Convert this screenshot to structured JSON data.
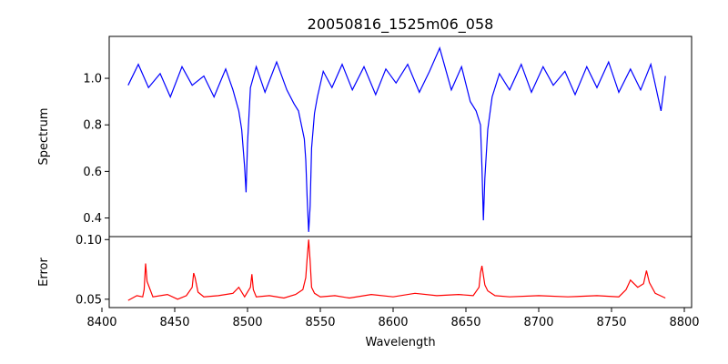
{
  "chart_data": {
    "type": "line",
    "title": "20050816_1525m06_058",
    "xlabel": "Wavelength",
    "xlim": [
      8405,
      8805
    ],
    "x_ticks": [
      "8400",
      "8450",
      "8500",
      "8550",
      "8600",
      "8650",
      "8700",
      "8750",
      "8800"
    ],
    "x_tick_values": [
      8400,
      8450,
      8500,
      8550,
      8600,
      8650,
      8700,
      8750,
      8800
    ],
    "grid": false,
    "wavelength_range": [
      8418,
      8787
    ],
    "panels": [
      {
        "name": "spectrum",
        "ylabel": "Spectrum",
        "ylim": [
          0.32,
          1.18
        ],
        "y_ticks": [
          "0.4",
          "0.6",
          "0.8",
          "1.0"
        ],
        "y_tick_values": [
          0.4,
          0.6,
          0.8,
          1.0
        ],
        "color": "#0000ff",
        "series": {
          "x": [
            8418,
            8425,
            8432,
            8440,
            8447,
            8455,
            8462,
            8470,
            8477,
            8485,
            8490,
            8494,
            8496,
            8498,
            8499,
            8500,
            8502,
            8506,
            8512,
            8520,
            8527,
            8532,
            8535,
            8537,
            8539,
            8540,
            8541,
            8542,
            8543,
            8544,
            8546,
            8548,
            8552,
            8558,
            8565,
            8572,
            8580,
            8588,
            8595,
            8602,
            8610,
            8618,
            8625,
            8632,
            8640,
            8647,
            8653,
            8657,
            8660,
            8661,
            8662,
            8663,
            8665,
            8668,
            8673,
            8680,
            8688,
            8695,
            8703,
            8710,
            8718,
            8725,
            8733,
            8740,
            8748,
            8755,
            8763,
            8770,
            8777,
            8784,
            8787
          ],
          "values": [
            0.97,
            1.06,
            0.96,
            1.02,
            0.92,
            1.05,
            0.97,
            1.01,
            0.92,
            1.04,
            0.95,
            0.86,
            0.78,
            0.62,
            0.51,
            0.72,
            0.96,
            1.05,
            0.94,
            1.07,
            0.95,
            0.89,
            0.86,
            0.8,
            0.74,
            0.65,
            0.48,
            0.34,
            0.45,
            0.7,
            0.85,
            0.92,
            1.03,
            0.96,
            1.06,
            0.95,
            1.05,
            0.93,
            1.04,
            0.98,
            1.06,
            0.94,
            1.03,
            1.13,
            0.95,
            1.05,
            0.9,
            0.86,
            0.8,
            0.62,
            0.39,
            0.57,
            0.78,
            0.92,
            1.02,
            0.95,
            1.06,
            0.94,
            1.05,
            0.97,
            1.03,
            0.93,
            1.05,
            0.96,
            1.07,
            0.94,
            1.04,
            0.95,
            1.06,
            0.86,
            1.01
          ]
        }
      },
      {
        "name": "error",
        "ylabel": "Error",
        "ylim": [
          0.043,
          0.1025
        ],
        "y_ticks": [
          "0.05",
          "0.10"
        ],
        "y_tick_values": [
          0.05,
          0.1
        ],
        "color": "#ff0000",
        "series": {
          "x": [
            8418,
            8424,
            8428,
            8429,
            8430,
            8431,
            8435,
            8445,
            8452,
            8458,
            8462,
            8463,
            8464,
            8466,
            8470,
            8480,
            8490,
            8494,
            8498,
            8502,
            8503,
            8504,
            8506,
            8515,
            8525,
            8533,
            8538,
            8540,
            8541,
            8542,
            8543,
            8544,
            8546,
            8550,
            8560,
            8570,
            8585,
            8600,
            8615,
            8630,
            8645,
            8655,
            8659,
            8660,
            8661,
            8662,
            8663,
            8665,
            8670,
            8680,
            8700,
            8720,
            8740,
            8755,
            8760,
            8763,
            8768,
            8772,
            8774,
            8776,
            8780,
            8787
          ],
          "values": [
            0.049,
            0.053,
            0.052,
            0.058,
            0.08,
            0.065,
            0.052,
            0.054,
            0.05,
            0.053,
            0.06,
            0.072,
            0.068,
            0.056,
            0.052,
            0.053,
            0.055,
            0.06,
            0.052,
            0.06,
            0.071,
            0.058,
            0.052,
            0.053,
            0.051,
            0.054,
            0.058,
            0.068,
            0.085,
            0.1,
            0.082,
            0.06,
            0.055,
            0.052,
            0.053,
            0.051,
            0.054,
            0.052,
            0.055,
            0.053,
            0.054,
            0.053,
            0.06,
            0.072,
            0.078,
            0.07,
            0.062,
            0.057,
            0.053,
            0.052,
            0.053,
            0.052,
            0.053,
            0.052,
            0.058,
            0.066,
            0.06,
            0.063,
            0.074,
            0.064,
            0.055,
            0.051
          ]
        }
      }
    ]
  }
}
